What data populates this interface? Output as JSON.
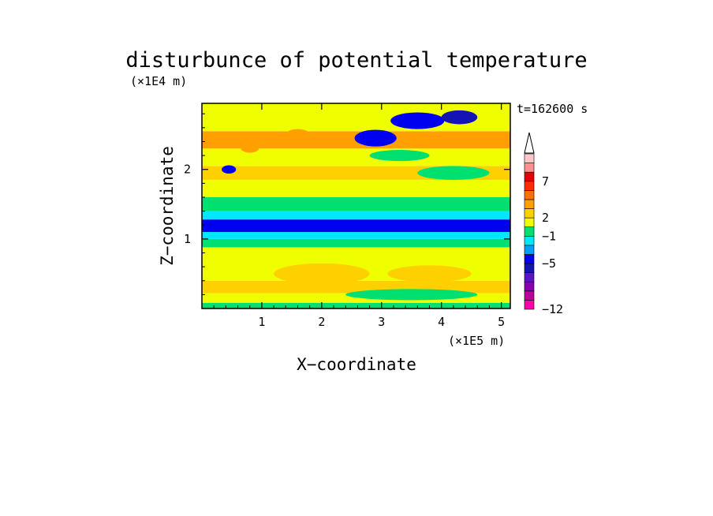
{
  "chart_data": {
    "type": "heatmap",
    "title": "disturbunce of potential temperature",
    "xlabel": "X−coordinate",
    "ylabel": "Z−coordinate",
    "x_unit": "(×1E5 m)",
    "y_unit": "(×1E4 m)",
    "time_label": "t=162600 s",
    "xlim": [
      0,
      5.15
    ],
    "ylim": [
      0,
      2.95
    ],
    "x_ticks": [
      "1",
      "2",
      "3",
      "4",
      "5"
    ],
    "y_ticks": [
      "1",
      "2"
    ],
    "colorbar": {
      "labels": [
        "7",
        "2",
        "−1",
        "−5",
        "−12"
      ],
      "levels": [
        "#ff00a8",
        "#c0009a",
        "#8a00b0",
        "#5a14c8",
        "#1414b4",
        "#0000f0",
        "#00a0ff",
        "#00e8ff",
        "#00e070",
        "#f0ff00",
        "#ffd000",
        "#ffa000",
        "#ff7000",
        "#ff2a00",
        "#e60000",
        "#ff9090",
        "#ffc8c8"
      ]
    },
    "bands": [
      {
        "z": [
          0.0,
          0.08
        ],
        "color": "#00e070"
      },
      {
        "z": [
          0.08,
          0.22
        ],
        "color": "#f0ff00"
      },
      {
        "z": [
          0.22,
          0.4
        ],
        "color": "#ffd000"
      },
      {
        "z": [
          0.4,
          0.88
        ],
        "color": "#f0ff00"
      },
      {
        "z": [
          0.88,
          1.0
        ],
        "color": "#00e070"
      },
      {
        "z": [
          1.0,
          1.1
        ],
        "color": "#00e8ff"
      },
      {
        "z": [
          1.1,
          1.28
        ],
        "color": "#0000f0"
      },
      {
        "z": [
          1.28,
          1.4
        ],
        "color": "#00e8ff"
      },
      {
        "z": [
          1.4,
          1.6
        ],
        "color": "#00e070"
      },
      {
        "z": [
          1.6,
          1.85
        ],
        "color": "#f0ff00"
      },
      {
        "z": [
          1.85,
          2.05
        ],
        "color": "#ffd000"
      },
      {
        "z": [
          2.05,
          2.3
        ],
        "color": "#f0ff00"
      },
      {
        "z": [
          2.3,
          2.55
        ],
        "color": "#ffa000"
      },
      {
        "z": [
          2.55,
          2.95
        ],
        "color": "#f0ff00"
      }
    ],
    "features": [
      {
        "x": 2.9,
        "z": 2.45,
        "rx": 0.35,
        "rz": 0.12,
        "color": "#0000f0"
      },
      {
        "x": 3.6,
        "z": 2.7,
        "rx": 0.45,
        "rz": 0.12,
        "color": "#0000f0"
      },
      {
        "x": 4.3,
        "z": 2.75,
        "rx": 0.3,
        "rz": 0.1,
        "color": "#1414b4"
      },
      {
        "x": 0.45,
        "z": 2.0,
        "rx": 0.12,
        "rz": 0.06,
        "color": "#0000f0"
      },
      {
        "x": 0.8,
        "z": 2.3,
        "rx": 0.15,
        "rz": 0.06,
        "color": "#ffa000"
      },
      {
        "x": 1.6,
        "z": 2.5,
        "rx": 0.2,
        "rz": 0.08,
        "color": "#ffa000"
      },
      {
        "x": 2.0,
        "z": 0.5,
        "rx": 0.8,
        "rz": 0.15,
        "color": "#ffd000"
      },
      {
        "x": 3.8,
        "z": 0.5,
        "rx": 0.7,
        "rz": 0.12,
        "color": "#ffd000"
      },
      {
        "x": 3.5,
        "z": 0.2,
        "rx": 1.1,
        "rz": 0.08,
        "color": "#00e070"
      },
      {
        "x": 4.2,
        "z": 1.95,
        "rx": 0.6,
        "rz": 0.1,
        "color": "#00e070"
      },
      {
        "x": 3.3,
        "z": 2.2,
        "rx": 0.5,
        "rz": 0.08,
        "color": "#00e070"
      }
    ]
  }
}
